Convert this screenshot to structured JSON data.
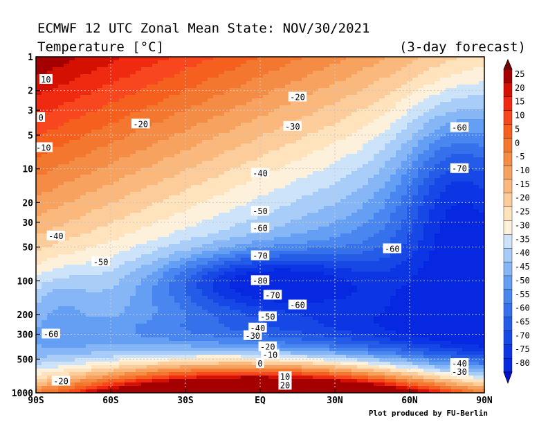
{
  "title_line1": "ECMWF 12 UTC Zonal Mean State: NOV/30/2021",
  "title_line2": "Temperature [°C]",
  "subtitle_right": "(3-day forecast)",
  "credit": "Plot produced by FU-Berlin",
  "chart_data": {
    "type": "heatmap",
    "xlabel": "",
    "ylabel": "",
    "x_ticks": [
      "90S",
      "60S",
      "30S",
      "EQ",
      "30N",
      "60N",
      "90N"
    ],
    "x_values": [
      -90,
      -60,
      -30,
      0,
      30,
      60,
      90
    ],
    "y_ticks": [
      "1",
      "2",
      "3",
      "5",
      "10",
      "20",
      "30",
      "50",
      "100",
      "200",
      "300",
      "500",
      "1000"
    ],
    "y_values": [
      1,
      2,
      3,
      5,
      10,
      20,
      30,
      50,
      100,
      200,
      300,
      500,
      1000
    ],
    "y_scale": "log",
    "y_reversed": true,
    "grid": true,
    "colorbar": {
      "ticks": [
        "25",
        "20",
        "15",
        "10",
        "5",
        "0",
        "-5",
        "-10",
        "-15",
        "-20",
        "-25",
        "-30",
        "-35",
        "-40",
        "-45",
        "-50",
        "-55",
        "-60",
        "-65",
        "-70",
        "-75",
        "-80"
      ],
      "values": [
        25,
        20,
        15,
        10,
        5,
        0,
        -5,
        -10,
        -15,
        -20,
        -25,
        -30,
        -35,
        -40,
        -45,
        -50,
        -55,
        -60,
        -65,
        -70,
        -75,
        -80
      ],
      "colors": [
        "#a50000",
        "#d41000",
        "#f02a10",
        "#f8461e",
        "#f5601f",
        "#f3772f",
        "#f58c45",
        "#f7a25e",
        "#fab87c",
        "#fccd9a",
        "#fee3bc",
        "#fef1db",
        "#cde3fa",
        "#a9cdf9",
        "#86b6f6",
        "#659ff4",
        "#4a86ef",
        "#3571ea",
        "#245ce8",
        "#1748e6",
        "#0c35e4",
        "#0628e0"
      ]
    },
    "contour_labels": [
      {
        "text": "10",
        "lat": -86,
        "p": 1.6
      },
      {
        "text": "0",
        "lat": -88,
        "p": 3.5
      },
      {
        "text": "-10",
        "lat": -87,
        "p": 6.5
      },
      {
        "text": "-20",
        "lat": -48,
        "p": 4.0
      },
      {
        "text": "-20",
        "lat": 15,
        "p": 2.3
      },
      {
        "text": "-30",
        "lat": 13,
        "p": 4.2
      },
      {
        "text": "-40",
        "lat": 0,
        "p": 11
      },
      {
        "text": "-40",
        "lat": -82,
        "p": 40
      },
      {
        "text": "-50",
        "lat": -64,
        "p": 68
      },
      {
        "text": "-50",
        "lat": 0,
        "p": 24
      },
      {
        "text": "-60",
        "lat": 0,
        "p": 34
      },
      {
        "text": "-60",
        "lat": 53,
        "p": 52
      },
      {
        "text": "-60",
        "lat": -84,
        "p": 300
      },
      {
        "text": "-60",
        "lat": 80,
        "p": 4.3
      },
      {
        "text": "-60",
        "lat": 15,
        "p": 165
      },
      {
        "text": "-70",
        "lat": 80,
        "p": 10
      },
      {
        "text": "-70",
        "lat": 0,
        "p": 60
      },
      {
        "text": "-70",
        "lat": 5,
        "p": 135
      },
      {
        "text": "-80",
        "lat": 0,
        "p": 100
      },
      {
        "text": "-50",
        "lat": 3,
        "p": 210
      },
      {
        "text": "-40",
        "lat": -1,
        "p": 265
      },
      {
        "text": "-30",
        "lat": -3,
        "p": 310
      },
      {
        "text": "-20",
        "lat": 3,
        "p": 390
      },
      {
        "text": "-10",
        "lat": 4,
        "p": 460
      },
      {
        "text": "0",
        "lat": 0,
        "p": 550
      },
      {
        "text": "10",
        "lat": 10,
        "p": 720
      },
      {
        "text": "20",
        "lat": 10,
        "p": 860
      },
      {
        "text": "-20",
        "lat": -80,
        "p": 790
      },
      {
        "text": "-40",
        "lat": 80,
        "p": 550
      },
      {
        "text": "-30",
        "lat": 80,
        "p": 650
      }
    ]
  }
}
